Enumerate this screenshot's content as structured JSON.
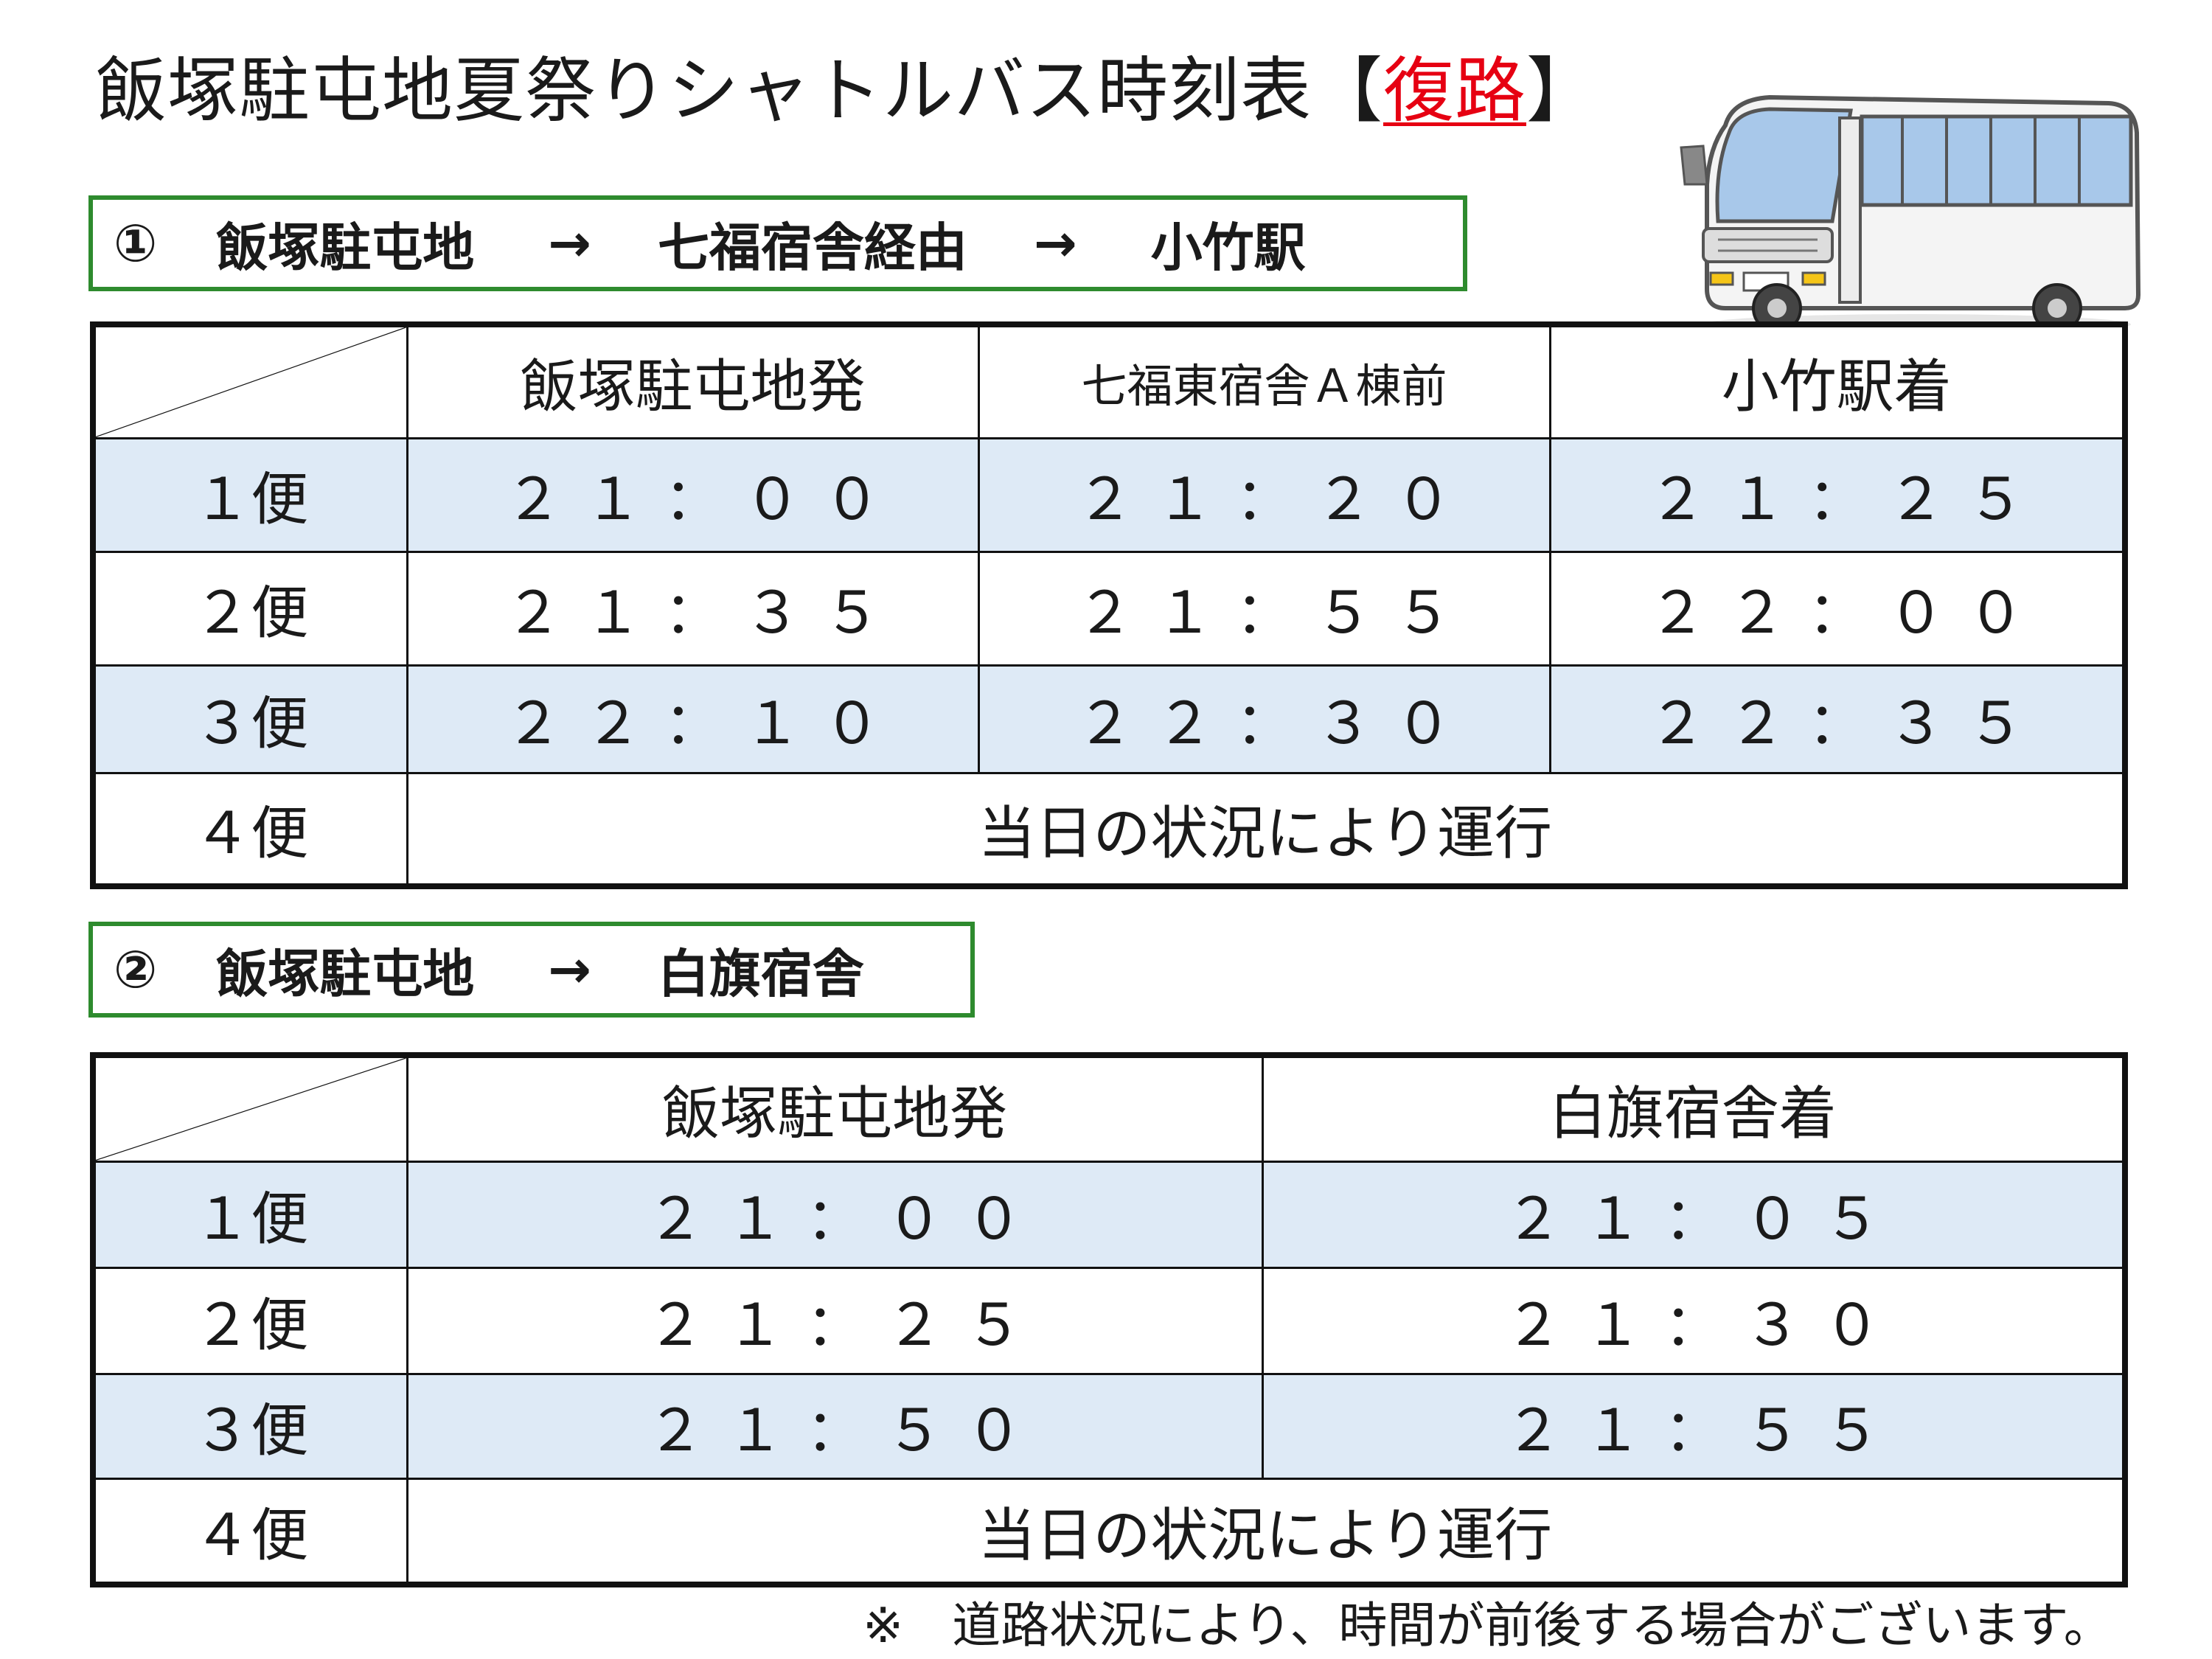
{
  "title": {
    "main": "飯塚駐屯地夏祭りシャトルバス時刻表【",
    "accent": "復路",
    "close": "】"
  },
  "colors": {
    "route_border": "#2e8b2e",
    "row_shade": "#deeaf6",
    "accent": "#e60012"
  },
  "route1": {
    "number": "①",
    "origin": "飯塚駐屯地",
    "arrow1": "→",
    "via": "七福宿舎経由",
    "arrow2": "→",
    "dest": "小竹駅",
    "headers": [
      "飯塚駐屯地発",
      "七福東宿舎Ａ棟前",
      "小竹駅着"
    ],
    "rows": [
      {
        "label": "１便",
        "times": [
          "２１：００",
          "２１：２０",
          "２１：２５"
        ]
      },
      {
        "label": "２便",
        "times": [
          "２１：３５",
          "２１：５５",
          "２２：００"
        ]
      },
      {
        "label": "３便",
        "times": [
          "２２：１０",
          "２２：３０",
          "２２：３５"
        ]
      },
      {
        "label": "４便",
        "note": "当日の状況により運行"
      }
    ]
  },
  "route2": {
    "number": "②",
    "origin": "飯塚駐屯地",
    "arrow1": "→",
    "dest": "白旗宿舎",
    "headers": [
      "飯塚駐屯地発",
      "白旗宿舎着"
    ],
    "rows": [
      {
        "label": "１便",
        "times": [
          "２１：００",
          "２１：０５"
        ]
      },
      {
        "label": "２便",
        "times": [
          "２１：２５",
          "２１：３０"
        ]
      },
      {
        "label": "３便",
        "times": [
          "２１：５０",
          "２１：５５"
        ]
      },
      {
        "label": "４便",
        "note": "当日の状況により運行"
      }
    ]
  },
  "footer_note": "※　道路状況により、時間が前後する場合がございます。",
  "illustration": {
    "icon": "bus-icon"
  }
}
